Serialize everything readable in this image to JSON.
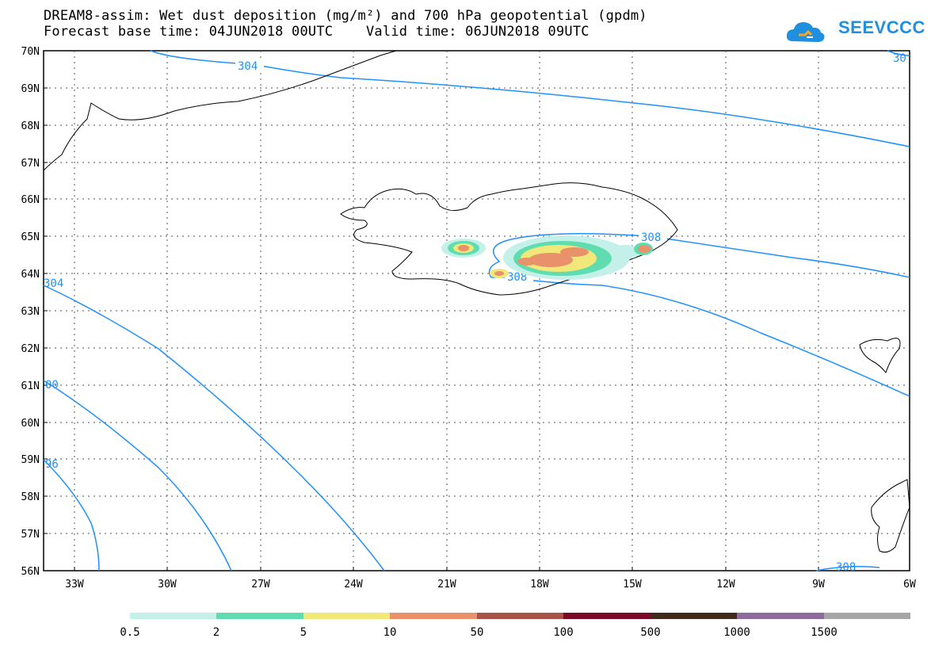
{
  "title": {
    "line1": "DREAM8-assim: Wet dust deposition (mg/m²) and 700 hPa geopotential (gpdm)",
    "line2": "Forecast base time: 04JUN2018 00UTC    Valid time: 06JUN2018 09UTC"
  },
  "logo": {
    "text": "SEEVCCC",
    "icon": "cloud-icon",
    "color": "#1f8fe0"
  },
  "lat_labels": [
    "70N",
    "69N",
    "68N",
    "67N",
    "66N",
    "65N",
    "64N",
    "63N",
    "62N",
    "61N",
    "60N",
    "59N",
    "58N",
    "57N",
    "56N"
  ],
  "lon_labels": [
    "33W",
    "30W",
    "27W",
    "24W",
    "21W",
    "18W",
    "15W",
    "12W",
    "9W",
    "6W"
  ],
  "contour_labels": [
    "304",
    "308",
    "308",
    "304",
    "00",
    "96",
    "308",
    "30"
  ],
  "legend": {
    "labels": [
      "0.5",
      "2",
      "5",
      "10",
      "50",
      "100",
      "500",
      "1000",
      "1500"
    ],
    "colors": [
      "#c4f0ea",
      "#5fdcb0",
      "#f2e879",
      "#e8916a",
      "#a8524a",
      "#7a0c2a",
      "#3f2a1c",
      "#8d6b9c",
      "#a6a6a6"
    ]
  },
  "colors": {
    "contour": "#1e90ff",
    "coast": "#000000"
  }
}
